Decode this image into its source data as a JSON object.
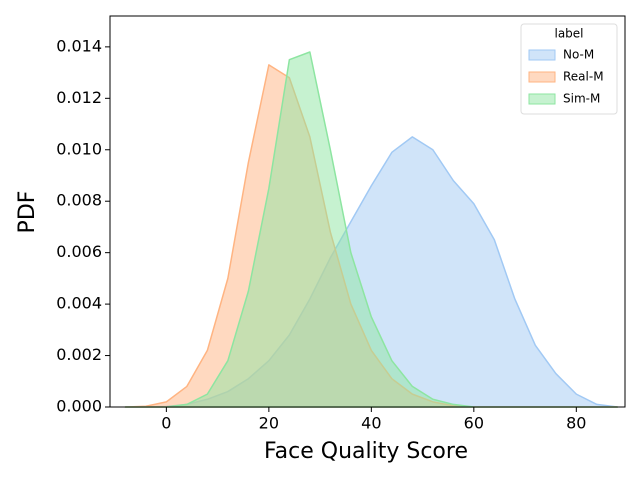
{
  "chart_data": {
    "type": "area",
    "x_label": "Face Quality Score",
    "y_label": "PDF",
    "legend_title": "label",
    "legend": "upper right",
    "x": [
      -8,
      -4,
      0,
      4,
      8,
      12,
      16,
      20,
      24,
      28,
      32,
      36,
      40,
      44,
      48,
      52,
      56,
      60,
      64,
      68,
      72,
      76,
      80,
      84,
      88
    ],
    "series": [
      {
        "name": "No-M",
        "color": "#a1c9f4",
        "values": [
          0,
          0,
          2e-05,
          0.0001,
          0.0003,
          0.0006,
          0.0011,
          0.0018,
          0.0028,
          0.0042,
          0.0058,
          0.0072,
          0.0086,
          0.0099,
          0.0105,
          0.01,
          0.0088,
          0.0079,
          0.0065,
          0.0042,
          0.0024,
          0.0013,
          0.0005,
          0.0001,
          0
        ]
      },
      {
        "name": "Real-M",
        "color": "#ffb482",
        "values": [
          0,
          3e-05,
          0.0002,
          0.0008,
          0.0022,
          0.005,
          0.0095,
          0.0133,
          0.0128,
          0.0105,
          0.0068,
          0.004,
          0.0022,
          0.0011,
          0.0005,
          0.0002,
          5e-05,
          0,
          0,
          0,
          0,
          0,
          0,
          0,
          0
        ]
      },
      {
        "name": "Sim-M",
        "color": "#8de5a1",
        "values": [
          0,
          0,
          0,
          0.0001,
          0.0005,
          0.0018,
          0.0045,
          0.0085,
          0.0135,
          0.0138,
          0.01,
          0.006,
          0.0035,
          0.0018,
          0.0008,
          0.0003,
          0.0001,
          0,
          0,
          0,
          0,
          0,
          0,
          0,
          0
        ]
      }
    ],
    "xlim": [
      -11,
      89.5
    ],
    "xticks": [
      0,
      20,
      40,
      60,
      80
    ],
    "ylim": [
      0,
      0.0152
    ],
    "yticks": [
      {
        "value": 0,
        "label": "0.000"
      },
      {
        "value": 0.002,
        "label": "0.002"
      },
      {
        "value": 0.004,
        "label": "0.004"
      },
      {
        "value": 0.006,
        "label": "0.006"
      },
      {
        "value": 0.008,
        "label": "0.008"
      },
      {
        "value": 0.01,
        "label": "0.010"
      },
      {
        "value": 0.012,
        "label": "0.012"
      },
      {
        "value": 0.014,
        "label": "0.014"
      }
    ]
  }
}
